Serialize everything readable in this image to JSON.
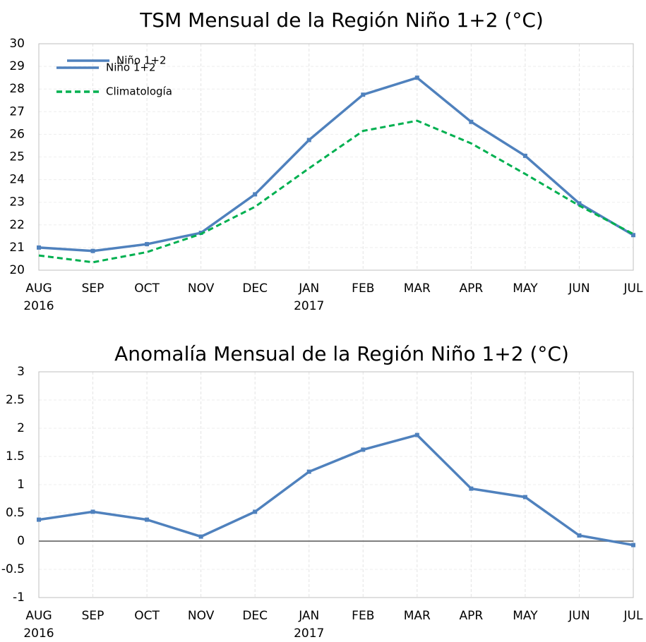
{
  "chart_data": [
    {
      "type": "line",
      "title": "TSM Mensual de la Región Niño 1+2 (°C)",
      "categories": [
        "AUG",
        "SEP",
        "OCT",
        "NOV",
        "DEC",
        "JAN",
        "FEB",
        "MAR",
        "APR",
        "MAY",
        "JUN",
        "JUL"
      ],
      "x_year_labels": [
        "2016",
        null,
        null,
        null,
        null,
        "2017",
        null,
        null,
        null,
        null,
        null,
        null
      ],
      "series": [
        {
          "name": "Niño 1+2",
          "color": "#4f81bd",
          "style": "solid",
          "markers": true,
          "values": [
            21.0,
            20.85,
            21.15,
            21.65,
            23.35,
            25.75,
            27.75,
            28.5,
            26.55,
            25.05,
            22.95,
            21.55
          ]
        },
        {
          "name": "Climatología",
          "color": "#00b050",
          "style": "dashed",
          "markers": false,
          "values": [
            20.65,
            20.35,
            20.8,
            21.6,
            22.8,
            24.5,
            26.15,
            26.6,
            25.6,
            24.25,
            22.85,
            21.6
          ]
        }
      ],
      "ylim": [
        20,
        30
      ],
      "yticks": [
        20,
        21,
        22,
        23,
        24,
        25,
        26,
        27,
        28,
        29,
        30
      ],
      "grid": true,
      "legend": "top-left",
      "zero_line": false
    },
    {
      "type": "line",
      "title": "Anomalía Mensual de la Región Niño 1+2 (°C)",
      "categories": [
        "AUG",
        "SEP",
        "OCT",
        "NOV",
        "DEC",
        "JAN",
        "FEB",
        "MAR",
        "APR",
        "MAY",
        "JUN",
        "JUL"
      ],
      "x_year_labels": [
        "2016",
        null,
        null,
        null,
        null,
        "2017",
        null,
        null,
        null,
        null,
        null,
        null
      ],
      "series": [
        {
          "name": "Niño 1+2",
          "color": "#4f81bd",
          "style": "solid",
          "markers": true,
          "values": [
            0.38,
            0.52,
            0.38,
            0.08,
            0.52,
            1.23,
            1.62,
            1.88,
            0.93,
            0.78,
            0.1,
            -0.07
          ]
        }
      ],
      "ylim": [
        -1,
        3
      ],
      "yticks": [
        -1,
        -0.5,
        0,
        0.5,
        1,
        1.5,
        2,
        2.5,
        3
      ],
      "grid": true,
      "legend": "top-left",
      "zero_line": true
    }
  ]
}
